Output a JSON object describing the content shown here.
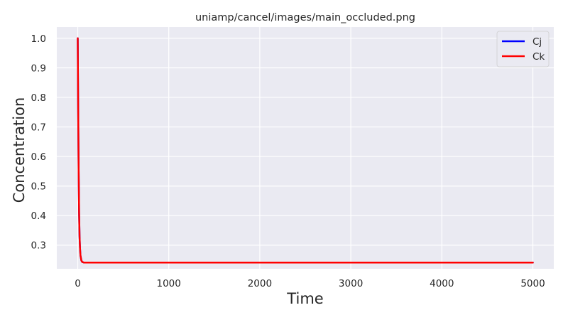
{
  "chart_data": {
    "type": "line",
    "title": "uniamp/cancel/images/main_occluded.png",
    "xlabel": "Time",
    "ylabel": "Concentration",
    "xlim": [
      -230,
      5230
    ],
    "ylim": [
      0.22,
      1.038
    ],
    "xticks": [
      0,
      1000,
      2000,
      3000,
      4000,
      5000
    ],
    "xtick_labels": [
      "0",
      "1000",
      "2000",
      "3000",
      "4000",
      "5000"
    ],
    "yticks": [
      0.3,
      0.4,
      0.5,
      0.6,
      0.7,
      0.8,
      0.9,
      1.0
    ],
    "ytick_labels": [
      "0.3",
      "0.4",
      "0.5",
      "0.6",
      "0.7",
      "0.8",
      "0.9",
      "1.0"
    ],
    "grid": true,
    "legend_position": "top-right",
    "series": [
      {
        "name": "Cj",
        "color": "#0000ff",
        "x": [
          0,
          5,
          10,
          15,
          20,
          25,
          30,
          40,
          50,
          70,
          100,
          200,
          500,
          1000,
          2000,
          3000,
          4000,
          5000
        ],
        "y": [
          1.0,
          0.75,
          0.55,
          0.41,
          0.33,
          0.29,
          0.265,
          0.248,
          0.243,
          0.241,
          0.241,
          0.241,
          0.241,
          0.241,
          0.241,
          0.241,
          0.241,
          0.241
        ]
      },
      {
        "name": "Ck",
        "color": "#ff0000",
        "x": [
          0,
          5,
          10,
          15,
          20,
          25,
          30,
          40,
          50,
          70,
          100,
          200,
          500,
          1000,
          2000,
          3000,
          4000,
          5000
        ],
        "y": [
          1.0,
          0.75,
          0.55,
          0.41,
          0.33,
          0.29,
          0.265,
          0.248,
          0.243,
          0.241,
          0.241,
          0.241,
          0.241,
          0.241,
          0.241,
          0.241,
          0.241,
          0.241
        ]
      }
    ]
  }
}
